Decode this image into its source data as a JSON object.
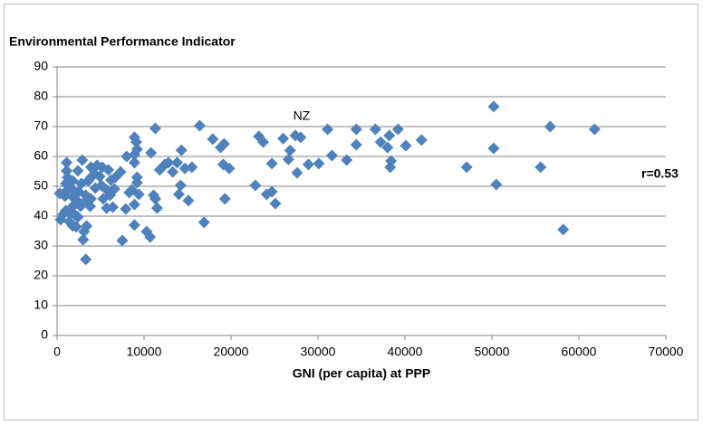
{
  "chart_data": {
    "type": "scatter",
    "y_label": "Environmental Performance Indicator",
    "x_label": "GNI (per capita) at PPP",
    "annotations": [
      "NZ",
      "r=0.53"
    ],
    "color": "#4f81bd",
    "grid": true,
    "xlim": [
      0,
      70000
    ],
    "xticks": [
      0,
      10000,
      20000,
      30000,
      40000,
      50000,
      60000,
      70000
    ],
    "ylim": [
      0,
      90
    ],
    "yticks": [
      0,
      10,
      20,
      30,
      40,
      50,
      60,
      70,
      80,
      90
    ],
    "x": [
      50200,
      50200,
      50500,
      47100,
      55600,
      56700,
      58200,
      61800,
      39200,
      40100,
      41900,
      36600,
      37200,
      38200,
      38000,
      38400,
      38300,
      34400,
      34400,
      33300,
      31600,
      31100,
      30100,
      28900,
      27600,
      28000,
      27400,
      26800,
      26600,
      26000,
      23200,
      23700,
      22800,
      24700,
      24100,
      24700,
      25100,
      16400,
      17900,
      19200,
      18800,
      19800,
      19100,
      19300,
      16900,
      15500,
      15100,
      14300,
      14700,
      14200,
      14000,
      13800,
      12800,
      13300,
      12400,
      11800,
      11300,
      10800,
      11100,
      11300,
      11500,
      10300,
      10700,
      9100,
      8900,
      9200,
      8900,
      8000,
      8900,
      9200,
      9200,
      8600,
      8300,
      9400,
      8900,
      7900,
      8900,
      7500,
      7300,
      6700,
      6200,
      6600,
      5700,
      6100,
      6400,
      5700,
      5300,
      5200,
      5900,
      4600,
      4300,
      3900,
      3900,
      4900,
      5100,
      4400,
      3600,
      3300,
      3300,
      3900,
      3800,
      3400,
      3100,
      3300,
      2900,
      2400,
      2800,
      2500,
      2300,
      2700,
      2400,
      2200,
      3000,
      1800,
      1600,
      1800,
      1700,
      1500,
      1100,
      1100,
      1200,
      1000,
      1200,
      900,
      1000,
      700,
      400,
      300,
      1400,
      1800,
      2100
    ],
    "values": [
      76.7,
      62.7,
      50.6,
      56.4,
      56.4,
      70,
      35.5,
      69.1,
      69.1,
      63.6,
      65.5,
      69.1,
      64.8,
      67,
      63,
      58.5,
      56.4,
      63.9,
      69.1,
      58.8,
      60.3,
      69.1,
      57.6,
      57.3,
      54.5,
      66.4,
      67,
      62,
      59,
      66,
      66.7,
      64.8,
      50.3,
      57.6,
      47.3,
      48.2,
      44.2,
      70.3,
      65.8,
      64.2,
      63,
      56,
      57.3,
      45.8,
      37.9,
      56.4,
      45.2,
      62.1,
      56,
      50.3,
      47.3,
      57.9,
      57.9,
      54.8,
      57.3,
      55.5,
      69.4,
      61.2,
      47,
      45.8,
      42.7,
      34.8,
      33,
      64.8,
      66.4,
      62.4,
      60.6,
      60,
      57.9,
      53,
      51.2,
      48.8,
      47.9,
      47.3,
      43.9,
      42.4,
      37,
      31.8,
      54.8,
      53,
      52.1,
      49.1,
      48.8,
      47,
      43,
      42.7,
      45.8,
      56.4,
      55.5,
      57,
      54.2,
      56.4,
      53,
      53.3,
      50.3,
      49.4,
      51.8,
      47,
      45.2,
      45.8,
      43.3,
      36.7,
      34.8,
      25.5,
      58.8,
      55.2,
      50.9,
      48.2,
      45.2,
      43.3,
      39.7,
      36.4,
      32.1,
      51.8,
      49.4,
      46.4,
      43,
      40.9,
      57.9,
      55.2,
      53,
      50.9,
      48.8,
      46.7,
      41.8,
      40.6,
      38.8,
      47.6,
      38.2,
      36.7,
      40.3
    ]
  }
}
